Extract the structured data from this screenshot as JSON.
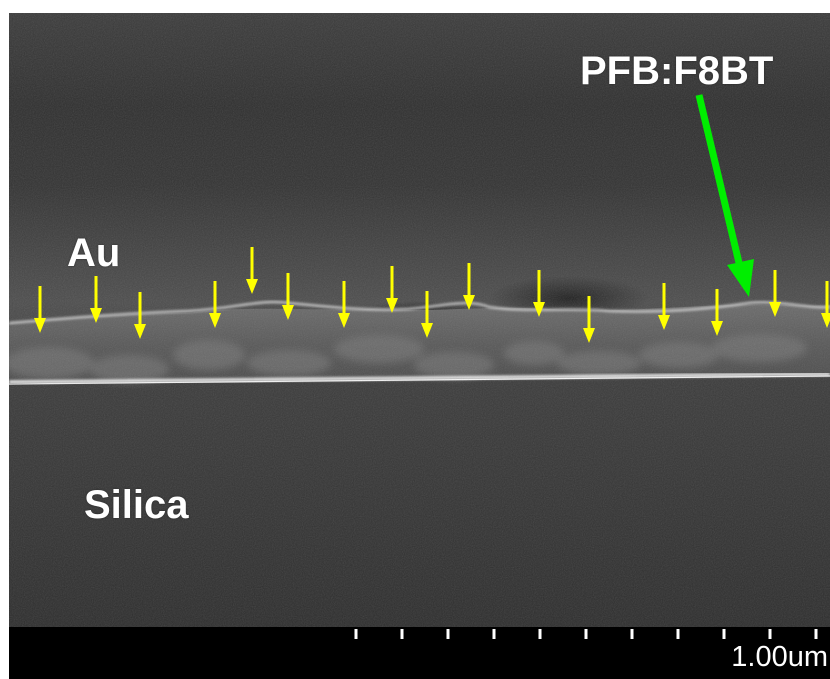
{
  "labels": {
    "au": "Au",
    "silica": "Silica",
    "polymer": "PFB:F8BT"
  },
  "scale_bar": {
    "label": "1.00um"
  },
  "colors": {
    "marker_arrows": "#ffff00",
    "pointer_arrow": "#00ee00",
    "info_bar": "#000000",
    "text": "#ffffff"
  }
}
